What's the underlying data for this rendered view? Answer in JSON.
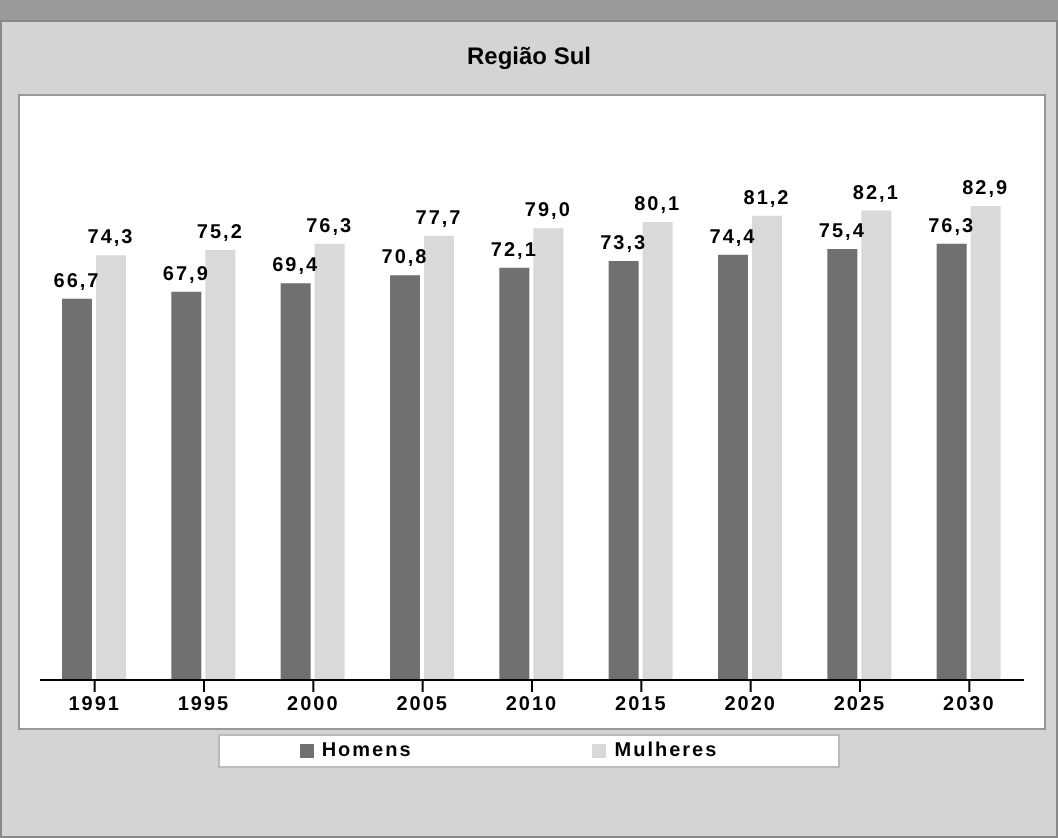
{
  "chart_data": {
    "type": "bar",
    "title": "Região Sul",
    "categories": [
      "1991",
      "1995",
      "2000",
      "2005",
      "2010",
      "2015",
      "2020",
      "2025",
      "2030"
    ],
    "series": [
      {
        "name": "Homens",
        "color": "#707070",
        "values": [
          66.7,
          67.9,
          69.4,
          70.8,
          72.1,
          73.3,
          74.4,
          75.4,
          76.3
        ],
        "value_labels": [
          "66,7",
          "67,9",
          "69,4",
          "70,8",
          "72,1",
          "73,3",
          "74,4",
          "75,4",
          "76,3"
        ]
      },
      {
        "name": "Mulheres",
        "color": "#d9d9d9",
        "values": [
          74.3,
          75.2,
          76.3,
          77.7,
          79.0,
          80.1,
          81.2,
          82.1,
          82.9
        ],
        "value_labels": [
          "74,3",
          "75,2",
          "76,3",
          "77,7",
          "79,0",
          "80,1",
          "81,2",
          "82,1",
          "82,9"
        ]
      }
    ],
    "legend": "bottom",
    "grid": false
  }
}
